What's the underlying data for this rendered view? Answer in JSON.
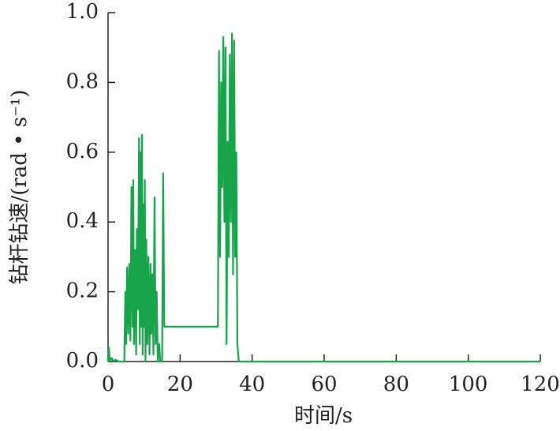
{
  "chart_data": {
    "type": "line",
    "x_label": "时间/s",
    "y_label": "钻杆钻速/(rad • s⁻¹)",
    "xlim": [
      0,
      120
    ],
    "xticks": [
      0,
      20,
      40,
      60,
      80,
      100,
      120
    ],
    "ylim": [
      0,
      1.0
    ],
    "yticks": [
      {
        "value": 0,
        "label": "0.0"
      },
      {
        "value": 0.2,
        "label": "0.2"
      },
      {
        "value": 0.4,
        "label": "0.4"
      },
      {
        "value": 0.6,
        "label": "0.6"
      },
      {
        "value": 0.8,
        "label": "0.8"
      },
      {
        "value": 1.0,
        "label": "1.0"
      }
    ],
    "series": [
      {
        "color": "#17a34a",
        "x": [
          0,
          0.2,
          0.5,
          1,
          1.5,
          2,
          3,
          4.5,
          4.8,
          5,
          5.3,
          5.6,
          5.9,
          6.2,
          6.5,
          6.8,
          7,
          7.2,
          7.5,
          7.8,
          8,
          8.3,
          8.6,
          8.8,
          9,
          9.2,
          9.4,
          9.6,
          9.8,
          10,
          10.2,
          10.4,
          10.6,
          10.9,
          11.2,
          11.5,
          11.8,
          12,
          12.3,
          12.6,
          12.9,
          13.2,
          13.5,
          13.8,
          14.2,
          14.5,
          15,
          15.3,
          15.6,
          30.5,
          30.8,
          31.1,
          31.4,
          31.7,
          32,
          32.3,
          32.6,
          32.9,
          33.2,
          33.5,
          33.8,
          34.1,
          34.4,
          34.7,
          35,
          35.3,
          35.6,
          35.9,
          36.3,
          120
        ],
        "values": [
          0,
          0.04,
          0,
          0.01,
          0,
          0.005,
          0,
          0,
          0.2,
          0.05,
          0.27,
          0.08,
          0.28,
          0.06,
          0.5,
          0.1,
          0.52,
          0.05,
          0.32,
          0.02,
          0.38,
          0.15,
          0.64,
          0.05,
          0.6,
          0.1,
          0.65,
          0.02,
          0.45,
          0.1,
          0.52,
          0,
          0.35,
          0.05,
          0.3,
          0.02,
          0.28,
          0.08,
          0.25,
          0.02,
          0.47,
          0.05,
          0.2,
          0,
          0.05,
          0,
          0,
          0.54,
          0.1,
          0.1,
          0.89,
          0.3,
          0.8,
          0.5,
          0.93,
          0.4,
          0.9,
          0.05,
          0.63,
          0.3,
          0.88,
          0.4,
          0.94,
          0.25,
          0.92,
          0.3,
          0.6,
          0.05,
          0,
          0
        ]
      }
    ]
  }
}
